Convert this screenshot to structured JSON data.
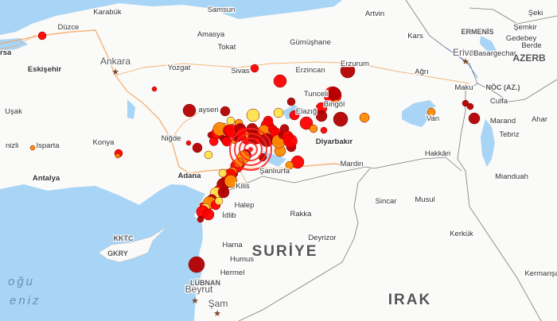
{
  "map": {
    "colors": {
      "land": "#fafaf8",
      "water": "#a8d4f5",
      "forest": "#e3eedb",
      "road": "#f4a259",
      "border": "#7a7a7a",
      "quake_red": "#ff0000",
      "quake_dark": "#b30000",
      "quake_orange": "#ff8c00",
      "quake_yellow": "#ffe44d",
      "epicenter": "#ff2222"
    },
    "capitals": [
      "Ankara",
      "Erivan",
      "Beyrut",
      "Şam"
    ],
    "labels": {
      "cities": [
        "Karabük",
        "Samsun",
        "Düzce",
        "Amasya",
        "Tokat",
        "Ankara",
        "Eskişehir",
        "Yozgat",
        "Sivas",
        "Uşak",
        "ayseri",
        "Niğde",
        "Konya",
        "Isparta",
        "nizli",
        "Antalya",
        "Adana",
        "Kilis",
        "Halep",
        "İdlib",
        "Hama",
        "Humus",
        "Hermel",
        "Beyrut",
        "Şam",
        "Şanlıurfa",
        "Diyarbakır",
        "Elazığ",
        "Tunceli",
        "Bingöl",
        "Erzincan",
        "Erzurum",
        "Gümüşhane",
        "Artvin",
        "Kars",
        "Ağrı",
        "Van",
        "Hakkâri",
        "Mardin",
        "Rakka",
        "Deyrizor",
        "Sincar",
        "Musul",
        "Kerkük",
        "Mianduah",
        "Kermanşa",
        "Şemkir",
        "Gedebey",
        "Şeki",
        "Berde",
        "Erivan",
        "Basargechar",
        "Maku",
        "Culfa",
        "Marand",
        "Ahar",
        "Tebriz",
        "rsa"
      ],
      "regions": [
        "KKTC",
        "GKRY",
        "LÜBNAN",
        "ERMENİS",
        "NÖC (AZ.)",
        "AZERB"
      ],
      "countries": [
        "SURİYE",
        "IRAK"
      ],
      "sea": [
        "oğu",
        "eniz"
      ]
    }
  }
}
